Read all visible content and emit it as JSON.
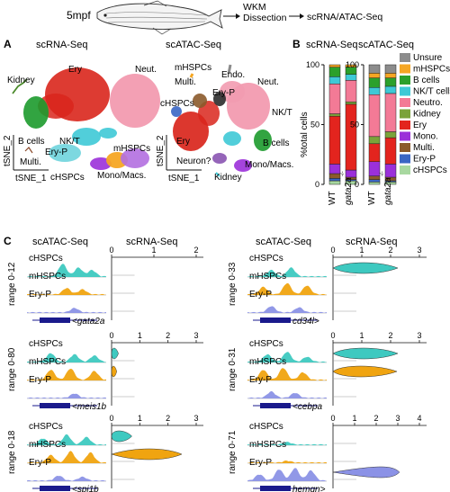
{
  "header": {
    "stage": "5mpf",
    "step1_line1": "WKM",
    "step1_line2": "Dissection",
    "step2": "scRNA/ATAC-Seq"
  },
  "panelA": {
    "letter": "A",
    "rna_title": "scRNA-Seq",
    "atac_title": "scATAC-Seq",
    "axis_x": "tSNE_1",
    "axis_y": "tSNE_2",
    "rna_labels": [
      "Kidney",
      "Ery",
      "Neut.",
      "B cells",
      "NK/T",
      "Ery-P",
      "Multi.",
      "mHSPCs",
      "cHSPCs",
      "Mono/Macs."
    ],
    "atac_labels": [
      "mHSPCs",
      "Endo.",
      "Multi.",
      "Neut.",
      "Ery-P",
      "cHSPCs",
      "NK/T",
      "Ery",
      "B cells",
      "Neuron?",
      "Mono/Macs.",
      "Kidney"
    ]
  },
  "panelB": {
    "letter": "B",
    "rna_title": "scRNA-Seq",
    "atac_title": "scATAC-Seq",
    "ylabel": "%total cells",
    "ticks": [
      "100",
      "50",
      "0"
    ],
    "group_labels": [
      "WT",
      "gata2a",
      "WT",
      "gata2a"
    ],
    "superscripts": [
      "-/-",
      "-/-"
    ],
    "legend": [
      {
        "label": "Unsure",
        "color": "#8c8c8c"
      },
      {
        "label": "mHSPCs",
        "color": "#f5a623"
      },
      {
        "label": "B cells",
        "color": "#2ba02b"
      },
      {
        "label": "NK/T cells",
        "color": "#3ec9d6"
      },
      {
        "label": "Neutro.",
        "color": "#f37a96"
      },
      {
        "label": "Kidney",
        "color": "#7aa33a"
      },
      {
        "label": "Ery",
        "color": "#e3241e"
      },
      {
        "label": "Mono.",
        "color": "#9b30d9"
      },
      {
        "label": "Multi.",
        "color": "#8b5a2b"
      },
      {
        "label": "Ery-P",
        "color": "#3a66c4"
      },
      {
        "label": "cHSPCs",
        "color": "#a8d8a0"
      }
    ]
  },
  "chart_data": [
    {
      "type": "bar",
      "stacked": true,
      "title": "scRNA-Seq",
      "ylabel": "%total cells",
      "ylim": [
        0,
        100
      ],
      "categories": [
        "WT",
        "gata2a-/-"
      ],
      "series": [
        {
          "name": "cHSPCs",
          "values": [
            3,
            3
          ]
        },
        {
          "name": "Ery-P",
          "values": [
            2,
            1
          ]
        },
        {
          "name": "Multi.",
          "values": [
            4,
            2
          ]
        },
        {
          "name": "Mono.",
          "values": [
            8,
            6
          ]
        },
        {
          "name": "Ery",
          "values": [
            40,
            55
          ]
        },
        {
          "name": "Kidney",
          "values": [
            2,
            2
          ]
        },
        {
          "name": "Neutro.",
          "values": [
            25,
            18
          ]
        },
        {
          "name": "NK/T cells",
          "values": [
            6,
            5
          ]
        },
        {
          "name": "B cells",
          "values": [
            8,
            6
          ]
        },
        {
          "name": "mHSPCs",
          "values": [
            2,
            2
          ]
        }
      ]
    },
    {
      "type": "bar",
      "stacked": true,
      "title": "scATAC-Seq",
      "ylabel": "%total cells",
      "ylim": [
        0,
        100
      ],
      "categories": [
        "WT",
        "gata2a-/-"
      ],
      "series": [
        {
          "name": "cHSPCs",
          "values": [
            2,
            2
          ]
        },
        {
          "name": "Ery-P",
          "values": [
            2,
            1
          ]
        },
        {
          "name": "Multi.",
          "values": [
            3,
            3
          ]
        },
        {
          "name": "Mono.",
          "values": [
            12,
            11
          ]
        },
        {
          "name": "Ery",
          "values": [
            15,
            22
          ]
        },
        {
          "name": "Kidney",
          "values": [
            6,
            5
          ]
        },
        {
          "name": "Neutro.",
          "values": [
            35,
            32
          ]
        },
        {
          "name": "NK/T cells",
          "values": [
            6,
            6
          ]
        },
        {
          "name": "B cells",
          "values": [
            8,
            7
          ]
        },
        {
          "name": "mHSPCs",
          "values": [
            4,
            4
          ]
        },
        {
          "name": "Unsure",
          "values": [
            7,
            7
          ]
        }
      ]
    }
  ],
  "panelC": {
    "letter": "C",
    "atac_title": "scATAC-Seq",
    "rna_title": "scRNA-Seq",
    "tracks": [
      "cHSPCs",
      "mHSPCs",
      "Ery-P"
    ],
    "genes": [
      {
        "gene": "<gata2a",
        "range": "range 0-12",
        "axis": [
          "0",
          "1",
          "2"
        ]
      },
      {
        "gene": "<meis1b",
        "range": "range 0-80",
        "axis": [
          "0",
          "1",
          "2",
          "3"
        ]
      },
      {
        "gene": "<spi1b",
        "range": "range 0-18",
        "axis": [
          "0",
          "1",
          "2",
          "3"
        ]
      },
      {
        "gene": "cd34l>",
        "range": "range 0-33",
        "axis": [
          "0",
          "1",
          "2",
          "3"
        ]
      },
      {
        "gene": "<cebpa",
        "range": "range 0-31",
        "axis": [
          "0",
          "1",
          "2",
          "3"
        ]
      },
      {
        "gene": "hemgn>",
        "range": "range 0-71",
        "axis": [
          "0",
          "1",
          "2",
          "3",
          "4"
        ]
      }
    ]
  }
}
